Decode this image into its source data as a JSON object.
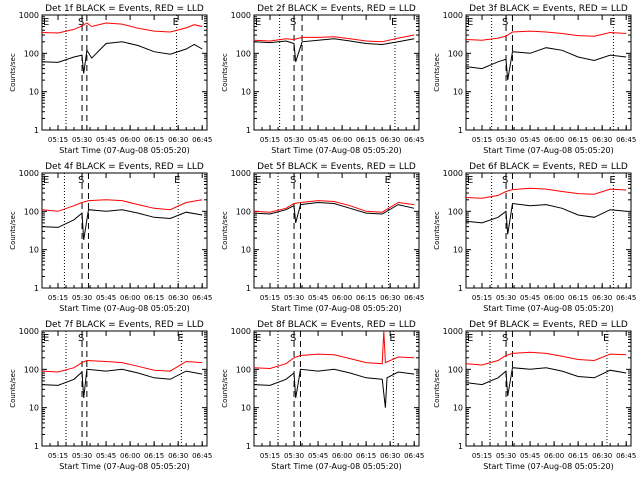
{
  "figure": {
    "ylabel": "Counts/sec",
    "xlabel": "Start Time (07-Aug-08 05:05:20)"
  },
  "colors": {
    "events": "#000000",
    "lld": "#ff0000"
  },
  "chart_data": [
    {
      "type": "line",
      "title": "Det 1f BLACK = Events, RED = LLD",
      "x_ticks": [
        "05:15",
        "05:30",
        "05:45",
        "06:00",
        "06:15",
        "06:30",
        "06:45"
      ],
      "y_ticks": [
        "1",
        "10",
        "100",
        "1000"
      ],
      "ylim": [
        1,
        1000
      ],
      "yscale": "log",
      "xlim": [
        "05:05",
        "06:48"
      ],
      "markers": [
        {
          "label": "E",
          "x": "05:05",
          "style": "dotted"
        },
        {
          "label": "S",
          "x": "05:30",
          "style": "dashed"
        },
        {
          "label": "",
          "x": "05:33",
          "style": "dashed"
        },
        {
          "label": "E",
          "x": "06:29",
          "style": "dotted"
        }
      ],
      "extra_dotted": [
        "05:20"
      ],
      "series": [
        {
          "name": "Events",
          "color": "black",
          "x": [
            "05:05",
            "05:15",
            "05:25",
            "05:30",
            "05:31",
            "05:33",
            "05:36",
            "05:45",
            "05:55",
            "06:05",
            "06:15",
            "06:25",
            "06:35",
            "06:40",
            "06:45"
          ],
          "y": [
            60,
            58,
            80,
            90,
            30,
            120,
            75,
            180,
            200,
            160,
            110,
            95,
            130,
            170,
            130
          ]
        },
        {
          "name": "LLD",
          "color": "red",
          "x": [
            "05:05",
            "05:15",
            "05:25",
            "05:30",
            "05:33",
            "05:36",
            "05:45",
            "05:55",
            "06:05",
            "06:15",
            "06:25",
            "06:35",
            "06:40",
            "06:45"
          ],
          "y": [
            350,
            340,
            420,
            520,
            620,
            500,
            620,
            580,
            450,
            380,
            360,
            460,
            560,
            500
          ]
        }
      ]
    },
    {
      "type": "line",
      "title": "Det 2f BLACK = Events, RED = LLD",
      "x_ticks": [
        "05:15",
        "05:30",
        "05:45",
        "06:00",
        "06:15",
        "06:30",
        "06:45"
      ],
      "y_ticks": [
        "1",
        "10",
        "100",
        "1000"
      ],
      "ylim": [
        1,
        1000
      ],
      "yscale": "log",
      "xlim": [
        "05:05",
        "06:48"
      ],
      "markers": [
        {
          "label": "E",
          "x": "05:05",
          "style": "dotted"
        },
        {
          "label": "S",
          "x": "05:30",
          "style": "dashed"
        },
        {
          "label": "",
          "x": "05:35",
          "style": "dashed"
        },
        {
          "label": "E",
          "x": "06:33",
          "style": "dotted"
        }
      ],
      "extra_dotted": [
        "05:21"
      ],
      "series": [
        {
          "name": "Events",
          "color": "black",
          "x": [
            "05:05",
            "05:15",
            "05:25",
            "05:30",
            "05:31",
            "05:35",
            "05:45",
            "05:55",
            "06:05",
            "06:15",
            "06:25",
            "06:35",
            "06:45"
          ],
          "y": [
            200,
            190,
            210,
            180,
            60,
            200,
            220,
            240,
            210,
            180,
            170,
            200,
            240
          ]
        },
        {
          "name": "LLD",
          "color": "red",
          "x": [
            "05:05",
            "05:15",
            "05:25",
            "05:30",
            "05:35",
            "05:45",
            "05:55",
            "06:05",
            "06:15",
            "06:25",
            "06:35",
            "06:45"
          ],
          "y": [
            220,
            210,
            240,
            230,
            260,
            260,
            270,
            240,
            210,
            200,
            250,
            300
          ]
        }
      ]
    },
    {
      "type": "line",
      "title": "Det 3f BLACK = Events, RED = LLD",
      "x_ticks": [
        "05:15",
        "05:30",
        "05:45",
        "06:00",
        "06:15",
        "06:30",
        "06:45"
      ],
      "y_ticks": [
        "1",
        "10",
        "100",
        "1000"
      ],
      "ylim": [
        1,
        1000
      ],
      "yscale": "log",
      "xlim": [
        "05:05",
        "06:48"
      ],
      "markers": [
        {
          "label": "E",
          "x": "05:05",
          "style": "dotted"
        },
        {
          "label": "S",
          "x": "05:30",
          "style": "dashed"
        },
        {
          "label": "",
          "x": "05:34",
          "style": "dashed"
        },
        {
          "label": "E",
          "x": "06:37",
          "style": "dotted"
        }
      ],
      "extra_dotted": [
        "05:21"
      ],
      "series": [
        {
          "name": "Events",
          "color": "black",
          "x": [
            "05:05",
            "05:15",
            "05:25",
            "05:30",
            "05:31",
            "05:34",
            "05:45",
            "05:55",
            "06:05",
            "06:15",
            "06:25",
            "06:35",
            "06:45"
          ],
          "y": [
            45,
            40,
            60,
            70,
            20,
            110,
            100,
            140,
            120,
            80,
            65,
            90,
            80
          ]
        },
        {
          "name": "LLD",
          "color": "red",
          "x": [
            "05:05",
            "05:15",
            "05:25",
            "05:30",
            "05:34",
            "05:45",
            "05:55",
            "06:05",
            "06:15",
            "06:25",
            "06:35",
            "06:45"
          ],
          "y": [
            230,
            220,
            250,
            280,
            360,
            380,
            360,
            330,
            290,
            280,
            350,
            330
          ]
        }
      ]
    },
    {
      "type": "line",
      "title": "Det 4f BLACK = Events, RED = LLD",
      "x_ticks": [
        "05:15",
        "05:30",
        "05:45",
        "06:00",
        "06:15",
        "06:30",
        "06:45"
      ],
      "y_ticks": [
        "1",
        "10",
        "100",
        "1000"
      ],
      "ylim": [
        1,
        1000
      ],
      "yscale": "log",
      "xlim": [
        "05:05",
        "06:48"
      ],
      "markers": [
        {
          "label": "E",
          "x": "05:05",
          "style": "dotted"
        },
        {
          "label": "S",
          "x": "05:30",
          "style": "dashed"
        },
        {
          "label": "",
          "x": "05:34",
          "style": "dashed"
        },
        {
          "label": "E",
          "x": "06:30",
          "style": "dotted"
        }
      ],
      "extra_dotted": [
        "05:19"
      ],
      "series": [
        {
          "name": "Events",
          "color": "black",
          "x": [
            "05:05",
            "05:15",
            "05:25",
            "05:30",
            "05:31",
            "05:34",
            "05:45",
            "05:55",
            "06:05",
            "06:15",
            "06:25",
            "06:35",
            "06:45"
          ],
          "y": [
            40,
            38,
            60,
            90,
            18,
            110,
            100,
            110,
            90,
            70,
            65,
            95,
            80
          ]
        },
        {
          "name": "LLD",
          "color": "red",
          "x": [
            "05:05",
            "05:15",
            "05:25",
            "05:30",
            "05:34",
            "05:45",
            "05:55",
            "06:05",
            "06:15",
            "06:25",
            "06:35",
            "06:45"
          ],
          "y": [
            110,
            100,
            140,
            170,
            190,
            200,
            190,
            150,
            120,
            110,
            170,
            200
          ]
        }
      ]
    },
    {
      "type": "line",
      "title": "Det 5f BLACK = Events, RED = LLD",
      "x_ticks": [
        "05:15",
        "05:30",
        "05:45",
        "06:00",
        "06:15",
        "06:30",
        "06:45"
      ],
      "y_ticks": [
        "1",
        "10",
        "100",
        "1000"
      ],
      "ylim": [
        1,
        1000
      ],
      "yscale": "log",
      "xlim": [
        "05:05",
        "06:48"
      ],
      "markers": [
        {
          "label": "E",
          "x": "05:05",
          "style": "dotted"
        },
        {
          "label": "S",
          "x": "05:30",
          "style": "dashed"
        },
        {
          "label": "",
          "x": "05:34",
          "style": "dashed"
        },
        {
          "label": "E",
          "x": "06:29",
          "style": "dotted"
        }
      ],
      "extra_dotted": [
        "05:20"
      ],
      "series": [
        {
          "name": "Events",
          "color": "black",
          "x": [
            "05:05",
            "05:15",
            "05:25",
            "05:30",
            "05:31",
            "05:34",
            "05:45",
            "05:55",
            "06:05",
            "06:15",
            "06:25",
            "06:35",
            "06:45"
          ],
          "y": [
            90,
            85,
            110,
            140,
            50,
            150,
            170,
            160,
            120,
            90,
            85,
            150,
            120
          ]
        },
        {
          "name": "LLD",
          "color": "red",
          "x": [
            "05:05",
            "05:15",
            "05:25",
            "05:30",
            "05:34",
            "05:45",
            "05:55",
            "06:05",
            "06:15",
            "06:25",
            "06:35",
            "06:45"
          ],
          "y": [
            100,
            95,
            120,
            160,
            170,
            190,
            180,
            140,
            100,
            95,
            170,
            150
          ]
        }
      ]
    },
    {
      "type": "line",
      "title": "Det 6f BLACK = Events, RED = LLD",
      "x_ticks": [
        "05:15",
        "05:30",
        "05:45",
        "06:00",
        "06:15",
        "06:30",
        "06:45"
      ],
      "y_ticks": [
        "1",
        "10",
        "100",
        "1000"
      ],
      "ylim": [
        1,
        1000
      ],
      "yscale": "log",
      "xlim": [
        "05:05",
        "06:48"
      ],
      "markers": [
        {
          "label": "E",
          "x": "05:05",
          "style": "dotted"
        },
        {
          "label": "S",
          "x": "05:30",
          "style": "dashed"
        },
        {
          "label": "",
          "x": "05:34",
          "style": "dashed"
        },
        {
          "label": "E",
          "x": "06:37",
          "style": "dotted"
        }
      ],
      "extra_dotted": [
        "05:21"
      ],
      "series": [
        {
          "name": "Events",
          "color": "black",
          "x": [
            "05:05",
            "05:15",
            "05:25",
            "05:30",
            "05:31",
            "05:34",
            "05:45",
            "05:55",
            "06:05",
            "06:15",
            "06:25",
            "06:35",
            "06:45"
          ],
          "y": [
            55,
            50,
            70,
            100,
            25,
            160,
            140,
            150,
            120,
            80,
            70,
            110,
            100
          ]
        },
        {
          "name": "LLD",
          "color": "red",
          "x": [
            "05:05",
            "05:15",
            "05:25",
            "05:30",
            "05:34",
            "05:45",
            "05:55",
            "06:05",
            "06:15",
            "06:25",
            "06:35",
            "06:45"
          ],
          "y": [
            230,
            220,
            260,
            330,
            370,
            400,
            380,
            330,
            290,
            280,
            380,
            360
          ]
        }
      ]
    },
    {
      "type": "line",
      "title": "Det 7f BLACK = Events, RED = LLD",
      "x_ticks": [
        "05:15",
        "05:30",
        "05:45",
        "06:00",
        "06:15",
        "06:30",
        "06:45"
      ],
      "y_ticks": [
        "1",
        "10",
        "100",
        "1000"
      ],
      "ylim": [
        1,
        1000
      ],
      "yscale": "log",
      "xlim": [
        "05:05",
        "06:48"
      ],
      "markers": [
        {
          "label": "E",
          "x": "05:05",
          "style": "dotted"
        },
        {
          "label": "S",
          "x": "05:30",
          "style": "dashed"
        },
        {
          "label": "",
          "x": "05:33",
          "style": "dashed"
        },
        {
          "label": "E",
          "x": "06:32",
          "style": "dotted"
        }
      ],
      "extra_dotted": [
        "05:20"
      ],
      "series": [
        {
          "name": "Events",
          "color": "black",
          "x": [
            "05:05",
            "05:15",
            "05:25",
            "05:30",
            "05:31",
            "05:33",
            "05:45",
            "05:55",
            "06:05",
            "06:15",
            "06:25",
            "06:35",
            "06:45"
          ],
          "y": [
            40,
            38,
            55,
            85,
            18,
            100,
            90,
            100,
            80,
            60,
            55,
            90,
            75
          ]
        },
        {
          "name": "LLD",
          "color": "red",
          "x": [
            "05:05",
            "05:15",
            "05:25",
            "05:30",
            "05:33",
            "05:45",
            "05:55",
            "06:05",
            "06:15",
            "06:25",
            "06:35",
            "06:45"
          ],
          "y": [
            90,
            85,
            110,
            150,
            170,
            160,
            150,
            120,
            95,
            90,
            160,
            150
          ]
        }
      ]
    },
    {
      "type": "line",
      "title": "Det 8f BLACK = Events, RED = LLD",
      "x_ticks": [
        "05:15",
        "05:30",
        "05:45",
        "06:00",
        "06:15",
        "06:30",
        "06:45"
      ],
      "y_ticks": [
        "1",
        "10",
        "100",
        "1000"
      ],
      "ylim": [
        1,
        1000
      ],
      "yscale": "log",
      "xlim": [
        "05:05",
        "06:48"
      ],
      "markers": [
        {
          "label": "E",
          "x": "05:05",
          "style": "dotted"
        },
        {
          "label": "S",
          "x": "05:30",
          "style": "dashed"
        },
        {
          "label": "",
          "x": "05:34",
          "style": "dashed"
        },
        {
          "label": "E",
          "x": "06:32",
          "style": "dotted"
        }
      ],
      "extra_dotted": [
        "05:20"
      ],
      "series": [
        {
          "name": "Events",
          "color": "black",
          "x": [
            "05:05",
            "05:15",
            "05:25",
            "05:30",
            "05:31",
            "05:34",
            "05:45",
            "05:55",
            "06:05",
            "06:15",
            "06:25",
            "06:27",
            "06:28",
            "06:35",
            "06:45"
          ],
          "y": [
            40,
            38,
            55,
            80,
            18,
            100,
            90,
            100,
            80,
            60,
            55,
            10,
            60,
            85,
            75
          ]
        },
        {
          "name": "LLD",
          "color": "red",
          "x": [
            "05:05",
            "05:15",
            "05:25",
            "05:30",
            "05:34",
            "05:45",
            "05:55",
            "06:05",
            "06:15",
            "06:25",
            "06:26",
            "06:27",
            "06:35",
            "06:45"
          ],
          "y": [
            110,
            105,
            140,
            200,
            230,
            250,
            240,
            190,
            150,
            140,
            1000,
            150,
            210,
            200
          ]
        }
      ]
    },
    {
      "type": "line",
      "title": "Det 9f BLACK = Events, RED = LLD",
      "x_ticks": [
        "05:15",
        "05:30",
        "05:45",
        "06:00",
        "06:15",
        "06:30",
        "06:45"
      ],
      "y_ticks": [
        "1",
        "10",
        "100",
        "1000"
      ],
      "ylim": [
        1,
        1000
      ],
      "yscale": "log",
      "xlim": [
        "05:05",
        "06:48"
      ],
      "markers": [
        {
          "label": "E",
          "x": "05:05",
          "style": "dotted"
        },
        {
          "label": "S",
          "x": "05:30",
          "style": "dashed"
        },
        {
          "label": "",
          "x": "05:34",
          "style": "dashed"
        },
        {
          "label": "E",
          "x": "06:33",
          "style": "dotted"
        }
      ],
      "extra_dotted": [
        "05:20"
      ],
      "series": [
        {
          "name": "Events",
          "color": "black",
          "x": [
            "05:05",
            "05:15",
            "05:25",
            "05:30",
            "05:31",
            "05:34",
            "05:45",
            "05:55",
            "06:05",
            "06:15",
            "06:25",
            "06:35",
            "06:45"
          ],
          "y": [
            45,
            40,
            60,
            90,
            20,
            110,
            100,
            110,
            90,
            65,
            60,
            95,
            80
          ]
        },
        {
          "name": "LLD",
          "color": "red",
          "x": [
            "05:05",
            "05:15",
            "05:25",
            "05:30",
            "05:34",
            "05:45",
            "05:55",
            "06:05",
            "06:15",
            "06:25",
            "06:35",
            "06:45"
          ],
          "y": [
            140,
            130,
            170,
            230,
            260,
            280,
            260,
            220,
            180,
            170,
            250,
            240
          ]
        }
      ]
    }
  ]
}
